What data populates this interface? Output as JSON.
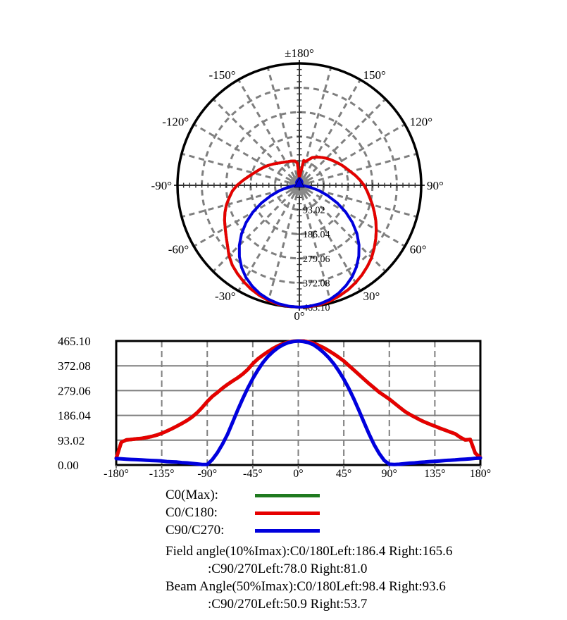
{
  "colors": {
    "c0max_green": "#1f7a1f",
    "c0c180_red": "#e60000",
    "c90c270_blue": "#0000dd",
    "grid_gray": "#7f7f7f",
    "axis_black": "#000000"
  },
  "polar": {
    "angle_labels": [
      {
        "angle": -180,
        "label": "±180°"
      },
      {
        "angle": -150,
        "label": "-150°"
      },
      {
        "angle": 150,
        "label": "150°"
      },
      {
        "angle": -120,
        "label": "-120°"
      },
      {
        "angle": 120,
        "label": "120°"
      },
      {
        "angle": -90,
        "label": "-90°"
      },
      {
        "angle": 90,
        "label": "90°"
      },
      {
        "angle": -60,
        "label": "-60°"
      },
      {
        "angle": 60,
        "label": "60°"
      },
      {
        "angle": -30,
        "label": "-30°"
      },
      {
        "angle": 30,
        "label": "30°"
      },
      {
        "angle": 0,
        "label": "0°"
      }
    ],
    "ring_labels": [
      "93.02",
      "186.04",
      "279.06",
      "372.08",
      "465.10"
    ]
  },
  "cartesian": {
    "y_labels": [
      "465.10",
      "372.08",
      "279.06",
      "186.04",
      "93.02",
      "0.00"
    ],
    "x_labels": [
      "-180°",
      "-135°",
      "-90°",
      "-45°",
      "0°",
      "45°",
      "90°",
      "135°",
      "180°"
    ]
  },
  "legend": [
    {
      "label": "C0(Max):",
      "color": "#1f7a1f"
    },
    {
      "label": "C0/C180:",
      "color": "#e60000"
    },
    {
      "label": "C90/C270:",
      "color": "#0000dd"
    }
  ],
  "notes": [
    "Field angle(10%Imax):C0/180Left:186.4 Right:165.6",
    ":C90/270Left:78.0 Right:81.0",
    "Beam Angle(50%Imax):C0/180Left:98.4 Right:93.6",
    ":C90/270Left:50.9 Right:53.7"
  ],
  "chart_data": [
    {
      "type": "polar",
      "title": "",
      "angle_zero": "bottom",
      "angle_ticks_deg": [
        -180,
        -150,
        -120,
        -90,
        -60,
        -30,
        0,
        30,
        60,
        90,
        120,
        150
      ],
      "radial_grid_step_deg": 15,
      "radial_ticks": [
        93.02,
        186.04,
        279.06,
        372.08,
        465.1
      ],
      "rmax": 465.1,
      "grid": true,
      "series_ref": "shared_series"
    },
    {
      "type": "line",
      "title": "",
      "xlabel": "",
      "ylabel": "",
      "xlim": [
        -180,
        180
      ],
      "ylim": [
        0,
        465.1
      ],
      "x_ticks": [
        -180,
        -135,
        -90,
        -45,
        0,
        45,
        90,
        135,
        180
      ],
      "y_ticks": [
        0,
        93.02,
        186.04,
        279.06,
        372.08,
        465.1
      ],
      "grid": true,
      "legend_position": "below",
      "series_ref": "shared_series"
    }
  ],
  "shared_series": {
    "x": [
      -180,
      -175,
      -170,
      -165,
      -160,
      -155,
      -150,
      -145,
      -140,
      -135,
      -130,
      -125,
      -120,
      -115,
      -110,
      -105,
      -100,
      -95,
      -90,
      -85,
      -80,
      -75,
      -70,
      -65,
      -60,
      -55,
      -50,
      -45,
      -40,
      -35,
      -30,
      -25,
      -20,
      -15,
      -10,
      -5,
      0,
      5,
      10,
      15,
      20,
      25,
      30,
      35,
      40,
      45,
      50,
      55,
      60,
      65,
      70,
      75,
      80,
      85,
      90,
      95,
      100,
      105,
      110,
      115,
      120,
      125,
      130,
      135,
      140,
      145,
      150,
      155,
      160,
      165,
      170,
      175,
      180
    ],
    "series": [
      {
        "name": "C0(Max)",
        "color": "#1f7a1f",
        "values_same_as": "C0/C180"
      },
      {
        "name": "C0/C180",
        "color": "#e60000",
        "values": [
          25,
          85,
          94,
          96,
          98,
          100,
          103,
          107,
          112,
          119,
          127,
          136,
          146,
          156,
          167,
          180,
          196,
          216,
          238,
          257,
          272,
          288,
          302,
          315,
          327,
          341,
          358,
          380,
          398,
          412,
          425,
          437,
          447,
          455,
          461,
          464,
          465,
          465,
          462,
          457,
          449,
          440,
          429,
          417,
          404,
          390,
          373,
          356,
          339,
          322,
          305,
          289,
          273,
          260,
          247,
          232,
          217,
          202,
          190,
          180,
          170,
          161,
          153,
          146,
          138,
          131,
          124,
          117,
          104,
          94,
          96,
          44,
          28
        ]
      },
      {
        "name": "C90/C270",
        "color": "#0000dd",
        "values": [
          24,
          23,
          22,
          21,
          20,
          19,
          18,
          17,
          16,
          15,
          13,
          12,
          11,
          9,
          8,
          6,
          4,
          2,
          2,
          20,
          46,
          78,
          115,
          160,
          205,
          248,
          288,
          324,
          356,
          384,
          407,
          425,
          440,
          451,
          459,
          463,
          465,
          463,
          459,
          451,
          438,
          422,
          403,
          380,
          353,
          322,
          287,
          247,
          204,
          160,
          116,
          76,
          43,
          17,
          3,
          2,
          3,
          5,
          7,
          8,
          10,
          11,
          13,
          14,
          15,
          17,
          18,
          19,
          21,
          22,
          23,
          25,
          26
        ]
      }
    ],
    "value_max": 465.1
  }
}
